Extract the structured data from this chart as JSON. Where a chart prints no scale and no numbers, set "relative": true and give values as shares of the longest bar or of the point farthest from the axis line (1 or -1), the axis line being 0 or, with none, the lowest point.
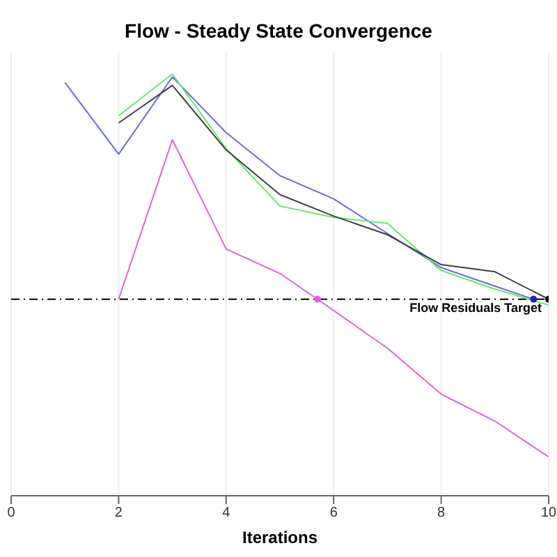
{
  "chart_data": {
    "type": "line",
    "title": "Flow - Steady State Convergence",
    "xlabel": "Iterations",
    "relative": true,
    "xlim": [
      0,
      10
    ],
    "xticks": [
      0,
      2,
      4,
      6,
      8,
      10
    ],
    "grid": "x",
    "marker": "none",
    "line_style": "solid",
    "legend": false,
    "series": [
      {
        "color": "#6a6ae0",
        "x": [
          1,
          2,
          3,
          4,
          5,
          6,
          7,
          8,
          9,
          9.72
        ],
        "values": [
          0.98,
          0.81,
          0.993,
          0.861,
          0.759,
          0.704,
          0.622,
          0.541,
          0.497,
          0.466
        ]
      },
      {
        "color": "#66e866",
        "x": [
          2,
          3,
          4,
          5,
          6,
          7,
          8,
          9,
          10
        ],
        "values": [
          0.901,
          1,
          0.823,
          0.687,
          0.66,
          0.646,
          0.534,
          0.49,
          0.452
        ]
      },
      {
        "color": "#404040",
        "x": [
          2,
          3,
          4,
          5,
          6,
          7,
          8,
          9,
          10
        ],
        "values": [
          0.884,
          0.973,
          0.82,
          0.714,
          0.663,
          0.619,
          0.548,
          0.531,
          0.466
        ]
      },
      {
        "color": "#e060e0",
        "x": [
          2,
          3,
          4,
          5,
          5.7,
          7,
          8,
          9,
          10
        ],
        "values": [
          0.466,
          0.844,
          0.585,
          0.527,
          0.466,
          0.35,
          0.241,
          0.177,
          0.092
        ]
      },
      {
        "type": "scatter",
        "marker": "circle",
        "x": [
          5.7,
          9.72,
          10
        ],
        "values": [
          0.466,
          0.466,
          0.466
        ],
        "colors": [
          "#e060e0",
          "#2020c0",
          "#000000"
        ]
      }
    ],
    "ref_lines": [
      {
        "axis": "y",
        "value": 0.466,
        "label": "Flow Residuals Target",
        "color": "#000000",
        "line_style": "dashed"
      }
    ]
  }
}
